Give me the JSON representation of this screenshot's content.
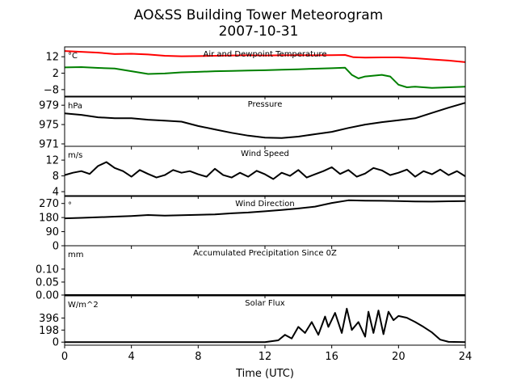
{
  "figure": {
    "title_line1": "AO&SS Building Tower Meteorogram",
    "title_line2": "2007-10-31",
    "xlabel": "Time (UTC)",
    "xlim": [
      0,
      24
    ],
    "xticks": [
      0,
      4,
      8,
      12,
      16,
      20,
      24
    ]
  },
  "chart_data": [
    {
      "type": "line",
      "title": "Air and Dewpoint Temperature",
      "unit": "°C",
      "ylim": [
        -12,
        18
      ],
      "yticks": [
        12,
        2,
        -8
      ],
      "series": [
        {
          "color": "#ff0000",
          "x": [
            0,
            1,
            2,
            3,
            4,
            5,
            6,
            7,
            8,
            9,
            10,
            11,
            12,
            13,
            14,
            15,
            16,
            16.8,
            17.3,
            18,
            19,
            20,
            21,
            22,
            23,
            24
          ],
          "y": [
            15.5,
            15,
            14.5,
            13.6,
            13.8,
            13.4,
            12.6,
            12.3,
            12.4,
            12.6,
            12.8,
            12.9,
            12.8,
            12.9,
            13,
            12.9,
            13,
            13.1,
            11.7,
            11.5,
            11.6,
            11.6,
            11.1,
            10.4,
            9.7,
            8.7
          ]
        },
        {
          "color": "#008000",
          "x": [
            0,
            1,
            2,
            3,
            4,
            5,
            6,
            7,
            8,
            9,
            10,
            11,
            12,
            13,
            14,
            15,
            16,
            16.8,
            17.2,
            17.6,
            18,
            19,
            19.5,
            20,
            20.5,
            21,
            22,
            23,
            24
          ],
          "y": [
            5.5,
            5.7,
            5.2,
            4.8,
            3.2,
            1.5,
            1.8,
            2.5,
            2.8,
            3.2,
            3.4,
            3.6,
            3.8,
            4.1,
            4.4,
            4.7,
            5,
            5.3,
            1,
            -1.2,
            0,
            1,
            0,
            -5,
            -6.6,
            -6.2,
            -7,
            -6.6,
            -6.2
          ]
        }
      ]
    },
    {
      "type": "line",
      "title": "Pressure",
      "unit": "hPa",
      "ylim": [
        970.5,
        980.7
      ],
      "yticks": [
        979,
        975,
        971
      ],
      "series": [
        {
          "color": "#000000",
          "x": [
            0,
            1,
            2,
            3,
            4,
            5,
            6,
            7,
            8,
            9,
            10,
            11,
            12,
            13,
            14,
            15,
            16,
            17,
            18,
            19,
            20,
            21,
            22,
            23,
            24
          ],
          "y": [
            977.3,
            977,
            976.5,
            976.3,
            976.3,
            976,
            975.8,
            975.6,
            974.7,
            974,
            973.3,
            972.7,
            972.3,
            972.2,
            972.5,
            973,
            973.5,
            974.3,
            975,
            975.5,
            975.9,
            976.3,
            977.4,
            978.5,
            979.5
          ]
        }
      ]
    },
    {
      "type": "line",
      "title": "Wind Speed",
      "unit": "m/s",
      "ylim": [
        3,
        15.5
      ],
      "yticks": [
        12,
        8,
        4
      ],
      "series": [
        {
          "color": "#000000",
          "x": [
            0,
            0.5,
            1,
            1.5,
            2,
            2.5,
            3,
            3.5,
            4,
            4.5,
            5,
            5.5,
            6,
            6.5,
            7,
            7.5,
            8,
            8.5,
            9,
            9.5,
            10,
            10.5,
            11,
            11.5,
            12,
            12.5,
            13,
            13.5,
            14,
            14.5,
            15,
            15.5,
            16,
            16.5,
            17,
            17.5,
            18,
            18.5,
            19,
            19.5,
            20,
            20.5,
            21,
            21.5,
            22,
            22.5,
            23,
            23.5,
            24
          ],
          "y": [
            8.2,
            8.8,
            9.2,
            8.5,
            10.5,
            11.5,
            10,
            9.2,
            7.8,
            9.5,
            8.5,
            7.6,
            8.2,
            9.5,
            8.8,
            9.2,
            8.4,
            7.8,
            9.8,
            8.2,
            7.6,
            8.8,
            7.8,
            9.3,
            8.4,
            7.2,
            8.8,
            8,
            9.5,
            7.6,
            8.4,
            9.2,
            10.2,
            8.5,
            9.5,
            7.8,
            8.6,
            10,
            9.4,
            8.2,
            8.8,
            9.6,
            7.8,
            9.2,
            8.4,
            9.6,
            8.2,
            9.2,
            7.9
          ]
        }
      ]
    },
    {
      "type": "line",
      "title": "Wind Direction",
      "unit": "°",
      "ylim": [
        0,
        315
      ],
      "yticks": [
        270,
        180,
        90,
        0
      ],
      "series": [
        {
          "color": "#000000",
          "x": [
            0,
            1,
            2,
            3,
            4,
            5,
            6,
            7,
            8,
            9,
            10,
            11,
            12,
            13,
            14,
            15,
            16,
            17,
            18,
            19,
            20,
            21,
            22,
            23,
            24
          ],
          "y": [
            175,
            178,
            182,
            186,
            190,
            196,
            192,
            195,
            198,
            200,
            207,
            212,
            220,
            228,
            238,
            250,
            273,
            290,
            288,
            287,
            285,
            283,
            282,
            284,
            285
          ]
        }
      ]
    },
    {
      "type": "line",
      "title": "Accumulated Precipitation Since 0Z",
      "unit": "mm",
      "ylim": [
        0,
        0.19
      ],
      "yticks": [
        0.1,
        0.05,
        0.0
      ],
      "ytick_labels": [
        "0.10",
        "0.05",
        "0.00"
      ],
      "series": [
        {
          "color": "#000000",
          "x": [
            0,
            24
          ],
          "y": [
            0,
            0
          ]
        }
      ]
    },
    {
      "type": "line",
      "title": "Solar Flux",
      "unit": "W/m^2",
      "ylim": [
        -50,
        760
      ],
      "yticks": [
        396,
        198,
        0
      ],
      "series": [
        {
          "color": "#000000",
          "x": [
            0,
            12,
            12.8,
            13.2,
            13.6,
            14,
            14.4,
            14.8,
            15.2,
            15.6,
            15.8,
            16.2,
            16.6,
            16.9,
            17.2,
            17.6,
            18,
            18.2,
            18.5,
            18.8,
            19.1,
            19.4,
            19.7,
            20,
            20.5,
            21,
            21.5,
            22,
            22.5,
            23,
            24
          ],
          "y": [
            0,
            0,
            30,
            120,
            60,
            250,
            150,
            330,
            120,
            420,
            250,
            480,
            150,
            550,
            200,
            330,
            90,
            500,
            150,
            520,
            130,
            500,
            360,
            430,
            400,
            330,
            250,
            160,
            40,
            5,
            0
          ]
        }
      ]
    }
  ]
}
